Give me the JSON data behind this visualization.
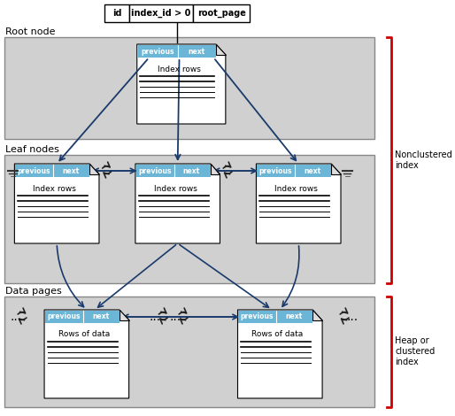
{
  "bg_color": "#d3d3d3",
  "white": "#ffffff",
  "blue_header": "#6bb5d6",
  "dark_blue": "#1a3a6b",
  "red_bracket": "#cc0000",
  "black": "#000000",
  "gray_section": "#c8c8c8",
  "light_gray": "#e0e0e0",
  "root_node_label": "Root node",
  "leaf_nodes_label": "Leaf nodes",
  "data_pages_label": "Data pages",
  "nonclustered_label": "Nonclustered\nindex",
  "heap_label": "Heap or\nclustered\nindex",
  "table_cols": [
    "id",
    "index_id > 0",
    "root_page"
  ],
  "prev_next_label": "previous | next",
  "index_rows_label": "Index rows",
  "rows_of_data_label": "Rows of data"
}
